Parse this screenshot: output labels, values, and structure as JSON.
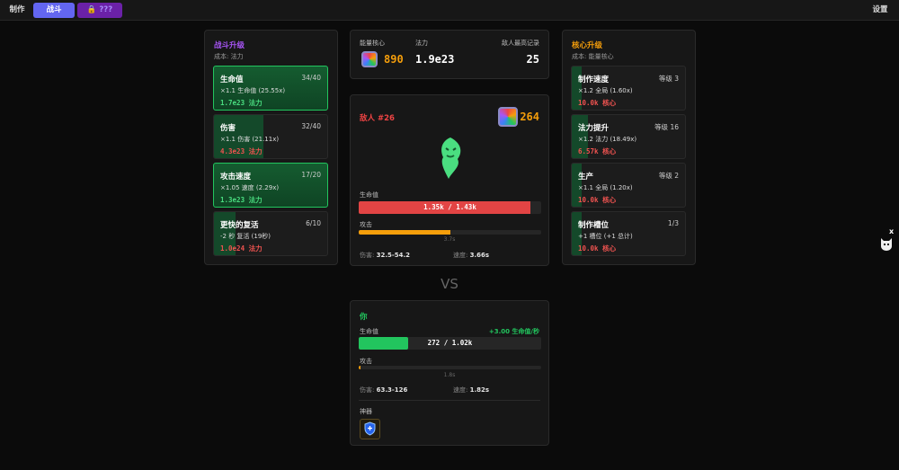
{
  "nav": {
    "craft": "制作",
    "battle": "战斗",
    "locked": "???",
    "settings": "设置"
  },
  "colors": {
    "accent": "#6366f1",
    "purple": "#6b21a8",
    "green": "#22c55e",
    "red": "#ef4444",
    "gold": "#f59e0b"
  },
  "combat_upgrades": {
    "title": "战斗升级",
    "cost": "成本: 法力",
    "items": [
      {
        "name": "生命值",
        "level": "34/40",
        "desc": "×1.1 生命值 (25.55x)",
        "cost": "1.7e23 法力",
        "affordable": true,
        "fill_pct": 100
      },
      {
        "name": "伤害",
        "level": "32/40",
        "desc": "×1.1 伤害 (21.11x)",
        "cost": "4.3e23 法力",
        "affordable": false,
        "fill_pct": 44
      },
      {
        "name": "攻击速度",
        "level": "17/20",
        "desc": "×1.05 速度 (2.29x)",
        "cost": "1.3e23 法力",
        "affordable": true,
        "fill_pct": 100
      },
      {
        "name": "更快的复活",
        "level": "6/10",
        "desc": "-2 秒 复活 (19秒)",
        "cost": "1.0e24 法力",
        "affordable": false,
        "fill_pct": 19
      }
    ]
  },
  "stats": {
    "cores_label": "能量核心",
    "cores": "890",
    "mana_label": "法力",
    "mana": "1.9e23",
    "record_label": "敌人最高记录",
    "record": "25"
  },
  "enemy": {
    "name": "敌人 #26",
    "reward": "264",
    "hp_label": "生命值",
    "hp": "1.35k / 1.43k",
    "hp_pct": 94,
    "attack_label": "攻击",
    "attack_pct": 50,
    "attack_time": "3.7s",
    "damage_label": "伤害:",
    "damage": "32.5-54.2",
    "speed_label": "速度:",
    "speed": "3.66s"
  },
  "vs": "VS",
  "player": {
    "name": "你",
    "hp_label": "生命值",
    "regen": "+3.00 生命值/秒",
    "hp": "272 / 1.02k",
    "hp_pct": 27,
    "attack_label": "攻击",
    "attack_pct": 1,
    "attack_time": "1.8s",
    "damage_label": "伤害:",
    "damage": "63.3-126",
    "speed_label": "速度:",
    "speed": "1.82s",
    "artifacts_label": "神器",
    "artifact_icon": "shield-icon"
  },
  "core_upgrades": {
    "title": "核心升级",
    "cost": "成本: 能量核心",
    "items": [
      {
        "name": "制作速度",
        "level": "等级 3",
        "desc": "×1.2 全局 (1.60x)",
        "cost": "10.0k 核心",
        "fill_pct": 9
      },
      {
        "name": "法力提升",
        "level": "等级 16",
        "desc": "×1.2 法力 (18.49x)",
        "cost": "6.57k 核心",
        "fill_pct": 14
      },
      {
        "name": "生产",
        "level": "等级 2",
        "desc": "×1.1 全局 (1.20x)",
        "cost": "10.0k 核心",
        "fill_pct": 9
      },
      {
        "name": "制作槽位",
        "level": "1/3",
        "desc": "+1 槽位 (+1 总计)",
        "cost": "10.0k 核心",
        "fill_pct": 9
      }
    ]
  },
  "pet": {
    "close": "x"
  }
}
